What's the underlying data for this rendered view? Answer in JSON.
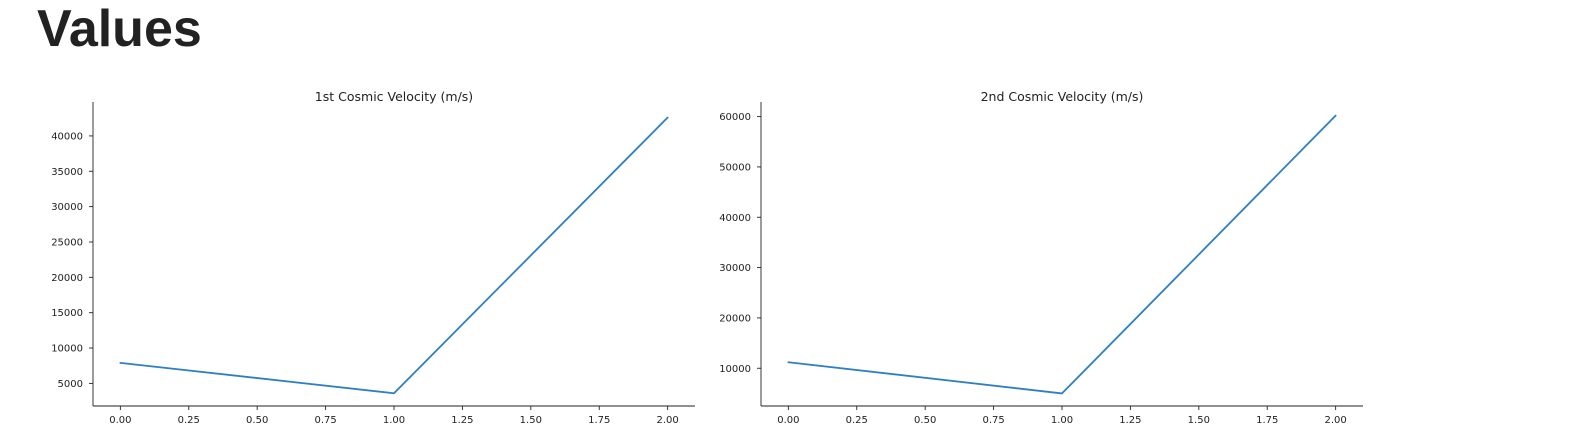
{
  "page": {
    "title": "Values"
  },
  "colors": {
    "series": "#2f7fc1",
    "axis": "#222222"
  },
  "chart_data": [
    {
      "type": "line",
      "title": "1st Cosmic Velocity (m/s)",
      "xlabel": "",
      "ylabel": "",
      "grid": false,
      "x": [
        0,
        1,
        2
      ],
      "series": [
        {
          "values": [
            7900,
            3600,
            42600
          ]
        }
      ],
      "xlim": [
        -0.1,
        2.1
      ],
      "ylim": [
        1800,
        44800
      ],
      "xticks": [
        0,
        0.25,
        0.5,
        0.75,
        1,
        1.25,
        1.5,
        1.75,
        2
      ],
      "xtick_labels": [
        "0.00",
        "0.25",
        "0.50",
        "0.75",
        "1.00",
        "1.25",
        "1.50",
        "1.75",
        "2.00"
      ],
      "yticks": [
        5000,
        10000,
        15000,
        20000,
        25000,
        30000,
        35000,
        40000
      ],
      "ytick_labels": [
        "5000",
        "10000",
        "15000",
        "20000",
        "25000",
        "30000",
        "35000",
        "40000"
      ]
    },
    {
      "type": "line",
      "title": "2nd Cosmic Velocity (m/s)",
      "xlabel": "",
      "ylabel": "",
      "grid": false,
      "x": [
        0,
        1,
        2
      ],
      "series": [
        {
          "values": [
            11200,
            5000,
            60200
          ]
        }
      ],
      "xlim": [
        -0.1,
        2.1
      ],
      "ylim": [
        2500,
        62900
      ],
      "xticks": [
        0,
        0.25,
        0.5,
        0.75,
        1,
        1.25,
        1.5,
        1.75,
        2
      ],
      "xtick_labels": [
        "0.00",
        "0.25",
        "0.50",
        "0.75",
        "1.00",
        "1.25",
        "1.50",
        "1.75",
        "2.00"
      ],
      "yticks": [
        10000,
        20000,
        30000,
        40000,
        50000,
        60000
      ],
      "ytick_labels": [
        "10000",
        "20000",
        "30000",
        "40000",
        "50000",
        "60000"
      ]
    }
  ]
}
